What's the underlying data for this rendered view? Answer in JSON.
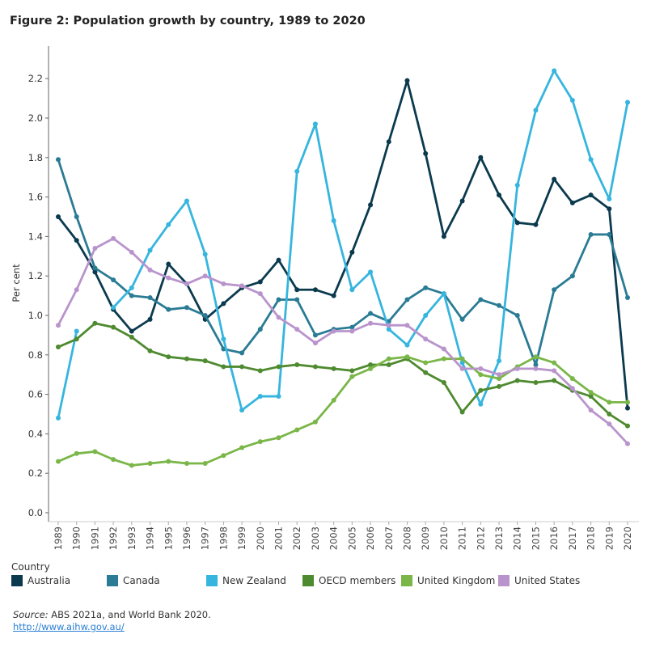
{
  "title": "Figure 2: Population growth by country, 1989 to 2020",
  "legend": {
    "title": "Country"
  },
  "source": {
    "label": "Source:",
    "text": " ABS 2021a, and World Bank 2020.",
    "link": "http://www.aihw.gov.au/"
  },
  "chart_data": {
    "type": "line",
    "title": "Figure 2: Population growth by country, 1989 to 2020",
    "xlabel": "",
    "ylabel": "Per cent",
    "ylim": [
      0,
      2.35
    ],
    "yticks": [
      "0.0",
      "0.2",
      "0.4",
      "0.6",
      "0.8",
      "1.0",
      "1.2",
      "1.4",
      "1.6",
      "1.8",
      "2.0",
      "2.2"
    ],
    "grid": false,
    "legend_position": "bottom",
    "x": [
      1989,
      1990,
      1991,
      1992,
      1993,
      1994,
      1995,
      1996,
      1997,
      1998,
      1999,
      2000,
      2001,
      2002,
      2003,
      2004,
      2005,
      2006,
      2007,
      2008,
      2009,
      2010,
      2011,
      2012,
      2013,
      2014,
      2015,
      2016,
      2017,
      2018,
      2019,
      2020
    ],
    "series": [
      {
        "name": "Australia",
        "color": "#0b3a4e",
        "values": [
          1.5,
          1.38,
          1.22,
          1.03,
          0.92,
          0.98,
          1.26,
          1.16,
          0.98,
          1.06,
          1.14,
          1.17,
          1.28,
          1.13,
          1.13,
          1.1,
          1.32,
          1.56,
          1.88,
          2.19,
          1.82,
          1.4,
          1.58,
          1.8,
          1.61,
          1.47,
          1.46,
          1.69,
          1.57,
          1.61,
          1.54,
          0.53
        ]
      },
      {
        "name": "Canada",
        "color": "#2a7b94",
        "values": [
          1.79,
          1.5,
          1.24,
          1.18,
          1.1,
          1.09,
          1.03,
          1.04,
          1.0,
          0.83,
          0.81,
          0.93,
          1.08,
          1.08,
          0.9,
          0.93,
          0.94,
          1.01,
          0.97,
          1.08,
          1.14,
          1.11,
          0.98,
          1.08,
          1.05,
          1.0,
          0.75,
          1.13,
          1.2,
          1.41,
          1.41,
          1.09
        ]
      },
      {
        "name": "New Zealand",
        "color": "#36b5de",
        "values": [
          0.48,
          0.92,
          null,
          1.04,
          1.14,
          1.33,
          1.46,
          1.58,
          1.31,
          0.88,
          0.52,
          0.59,
          0.59,
          1.73,
          1.97,
          1.48,
          1.13,
          1.22,
          0.93,
          0.85,
          1.0,
          1.11,
          0.76,
          0.55,
          0.77,
          1.66,
          2.04,
          2.24,
          2.09,
          1.79,
          1.59,
          2.08
        ]
      },
      {
        "name": "OECD members",
        "color": "#4e8a2f",
        "values": [
          0.84,
          0.88,
          0.96,
          0.94,
          0.89,
          0.82,
          0.79,
          0.78,
          0.77,
          0.74,
          0.74,
          0.72,
          0.74,
          0.75,
          0.74,
          0.73,
          0.72,
          0.75,
          0.75,
          0.78,
          0.71,
          0.66,
          0.51,
          0.62,
          0.64,
          0.67,
          0.66,
          0.67,
          0.62,
          0.59,
          0.5,
          0.44
        ]
      },
      {
        "name": "United Kingdom",
        "color": "#7ab648",
        "values": [
          0.26,
          0.3,
          0.31,
          0.27,
          0.24,
          0.25,
          0.26,
          0.25,
          0.25,
          0.29,
          0.33,
          0.36,
          0.38,
          0.42,
          0.46,
          0.57,
          0.69,
          0.73,
          0.78,
          0.79,
          0.76,
          0.78,
          0.78,
          0.7,
          0.68,
          0.74,
          0.79,
          0.76,
          0.68,
          0.61,
          0.56,
          0.56
        ]
      },
      {
        "name": "United States",
        "color": "#b994cc",
        "values": [
          0.95,
          1.13,
          1.34,
          1.39,
          1.32,
          1.23,
          1.19,
          1.16,
          1.2,
          1.16,
          1.15,
          1.11,
          0.99,
          0.93,
          0.86,
          0.92,
          0.92,
          0.96,
          0.95,
          0.95,
          0.88,
          0.83,
          0.73,
          0.73,
          0.7,
          0.73,
          0.73,
          0.72,
          0.63,
          0.52,
          0.45,
          0.35
        ]
      }
    ]
  }
}
